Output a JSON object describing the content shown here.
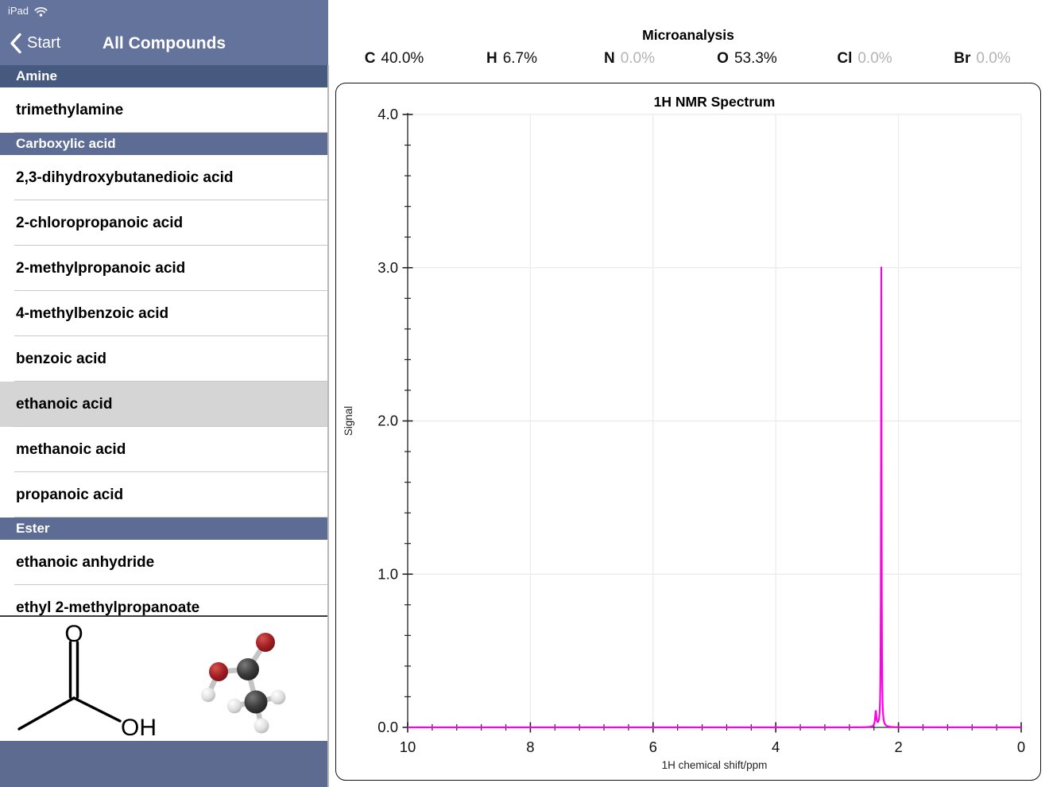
{
  "status_bar": {
    "device": "iPad",
    "wifi_icon": "wifi"
  },
  "nav": {
    "back_label": "Start",
    "title": "All Compounds"
  },
  "sidebar": {
    "sections": [
      {
        "header": "Amine",
        "pinned": true,
        "items": [
          {
            "label": "trimethylamine"
          }
        ]
      },
      {
        "header": "Carboxylic acid",
        "pinned": false,
        "items": [
          {
            "label": "2,3-dihydroxybutanedioic acid"
          },
          {
            "label": "2-chloropropanoic acid"
          },
          {
            "label": "2-methylpropanoic acid"
          },
          {
            "label": "4-methylbenzoic acid"
          },
          {
            "label": "benzoic acid"
          },
          {
            "label": "ethanoic acid",
            "selected": true
          },
          {
            "label": "methanoic acid"
          },
          {
            "label": "propanoic acid"
          }
        ]
      },
      {
        "header": "Ester",
        "pinned": false,
        "items": [
          {
            "label": "ethanoic anhydride"
          },
          {
            "label": "ethyl 2-methylpropanoate"
          }
        ]
      }
    ]
  },
  "preview": {
    "compound": "ethanoic acid",
    "skeletal_labels": {
      "carbonyl_oxygen": "O",
      "hydroxyl": "OH"
    },
    "atom_colors": {
      "carbon": "#3b3b3b",
      "oxygen": "#a31f24",
      "hydrogen": "#e2e2e2"
    }
  },
  "microanalysis": {
    "title": "Microanalysis",
    "elements": [
      {
        "symbol": "C",
        "value": "40.0%",
        "dim": false
      },
      {
        "symbol": "H",
        "value": "6.7%",
        "dim": false
      },
      {
        "symbol": "N",
        "value": "0.0%",
        "dim": true
      },
      {
        "symbol": "O",
        "value": "53.3%",
        "dim": false
      },
      {
        "symbol": "Cl",
        "value": "0.0%",
        "dim": true
      },
      {
        "symbol": "Br",
        "value": "0.0%",
        "dim": true
      }
    ]
  },
  "chart_data": {
    "type": "line",
    "title": "1H NMR Spectrum",
    "xlabel": "1H chemical shift/ppm",
    "ylabel": "Signal",
    "xlim": [
      10,
      0
    ],
    "ylim": [
      0,
      4
    ],
    "x_major_tick_step": 2,
    "x_minor_tick_step": 0.4,
    "y_major_tick_step": 1,
    "y_minor_tick_step": 0.2,
    "grid": true,
    "line_color": "#ff00e6",
    "series": [
      {
        "name": "ethanoic acid",
        "peaks": [
          {
            "ppm": 2.28,
            "height": 3.0,
            "hwhm": 0.005
          },
          {
            "ppm": 2.37,
            "height": 0.1,
            "hwhm": 0.012
          }
        ],
        "baseline": 0.0
      }
    ]
  },
  "colors": {
    "nav_slate": "#64739c",
    "section_header": "#5d6c94",
    "section_header_pinned": "#46597f",
    "footer_slate": "#5d6b90",
    "selected_row": "#d5d5d5",
    "spectrum_line": "#ff00e6",
    "dim_value": "#b3b3b3"
  }
}
